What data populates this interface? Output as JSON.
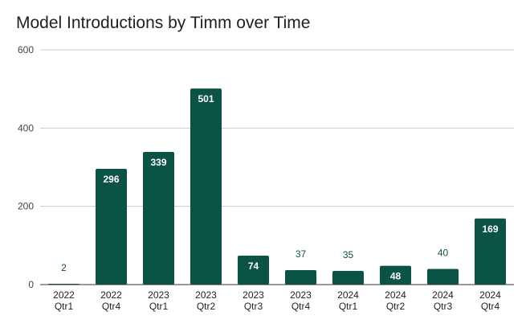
{
  "chart_data": {
    "type": "bar",
    "title": "Model Introductions by Timm over Time",
    "categories": [
      [
        "2022",
        "Qtr1"
      ],
      [
        "2022",
        "Qtr4"
      ],
      [
        "2023",
        "Qtr1"
      ],
      [
        "2023",
        "Qtr2"
      ],
      [
        "2023",
        "Qtr3"
      ],
      [
        "2023",
        "Qtr4"
      ],
      [
        "2024",
        "Qtr1"
      ],
      [
        "2024",
        "Qtr2"
      ],
      [
        "2024",
        "Qtr3"
      ],
      [
        "2024",
        "Qtr4"
      ]
    ],
    "values": [
      2,
      296,
      339,
      501,
      74,
      37,
      35,
      48,
      40,
      169
    ],
    "ylim": [
      0,
      600
    ],
    "yticks": [
      0,
      200,
      400,
      600
    ],
    "grid": true,
    "bar_color": "#0b5345",
    "xlabel": "",
    "ylabel": ""
  }
}
